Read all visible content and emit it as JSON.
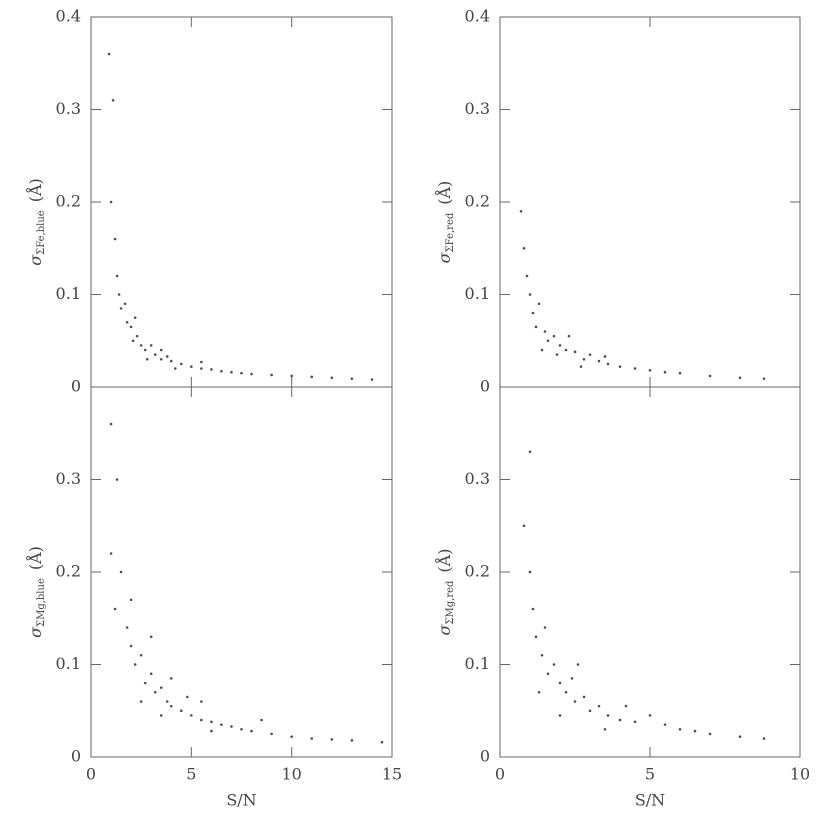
{
  "chart_data": [
    {
      "type": "scatter",
      "color": "#222222",
      "ylabel": {
        "symbol": "σ",
        "subscript": "ΣFe,blue",
        "unit": "(Å)"
      },
      "xlim": [
        0,
        15
      ],
      "ylim": [
        0,
        0.4
      ],
      "yticks": [
        0,
        0.1,
        0.2,
        0.3,
        0.4
      ],
      "x": [
        0.9,
        1.1,
        1.0,
        1.2,
        1.3,
        1.4,
        1.5,
        1.7,
        1.8,
        2.0,
        2.1,
        2.3,
        2.5,
        2.7,
        3.0,
        3.2,
        3.5,
        3.8,
        4.0,
        4.5,
        5.0,
        5.5,
        6.0,
        6.5,
        7.0,
        7.5,
        8.0,
        9.0,
        10.0,
        11.0,
        12.0,
        13.0,
        14.0,
        2.2,
        2.8,
        3.5,
        4.2,
        5.5
      ],
      "values": [
        0.36,
        0.31,
        0.2,
        0.16,
        0.12,
        0.1,
        0.085,
        0.09,
        0.07,
        0.065,
        0.05,
        0.055,
        0.045,
        0.04,
        0.045,
        0.035,
        0.03,
        0.033,
        0.028,
        0.025,
        0.022,
        0.02,
        0.019,
        0.017,
        0.016,
        0.015,
        0.014,
        0.013,
        0.012,
        0.011,
        0.01,
        0.009,
        0.008,
        0.075,
        0.03,
        0.04,
        0.02,
        0.027
      ]
    },
    {
      "type": "scatter",
      "color": "#222222",
      "ylabel": {
        "symbol": "σ",
        "subscript": "ΣFe,red",
        "unit": "(Å)"
      },
      "xlim": [
        0,
        10
      ],
      "ylim": [
        0,
        0.4
      ],
      "yticks": [
        0,
        0.1,
        0.2,
        0.3,
        0.4
      ],
      "x": [
        0.7,
        0.8,
        0.9,
        1.0,
        1.1,
        1.2,
        1.3,
        1.5,
        1.6,
        1.8,
        2.0,
        2.2,
        2.5,
        2.8,
        3.0,
        3.3,
        3.6,
        4.0,
        4.5,
        5.0,
        5.5,
        6.0,
        7.0,
        8.0,
        8.8,
        1.4,
        2.3,
        1.9,
        3.5,
        2.7
      ],
      "values": [
        0.19,
        0.15,
        0.12,
        0.1,
        0.08,
        0.065,
        0.09,
        0.06,
        0.05,
        0.055,
        0.045,
        0.04,
        0.038,
        0.03,
        0.035,
        0.028,
        0.025,
        0.022,
        0.02,
        0.018,
        0.016,
        0.015,
        0.012,
        0.01,
        0.009,
        0.04,
        0.055,
        0.035,
        0.033,
        0.022
      ]
    },
    {
      "type": "scatter",
      "color": "#222222",
      "ylabel": {
        "symbol": "σ",
        "subscript": "ΣMg,blue",
        "unit": "(Å)"
      },
      "xlabel": "S/N",
      "xlim": [
        0,
        15
      ],
      "xticks": [
        0,
        5,
        10,
        15
      ],
      "ylim": [
        0,
        0.4
      ],
      "yticks": [
        0,
        0.1,
        0.2,
        0.3
      ],
      "x": [
        1.0,
        1.3,
        1.0,
        1.5,
        1.2,
        1.8,
        2.0,
        2.2,
        2.5,
        2.7,
        3.0,
        3.2,
        3.5,
        3.8,
        4.0,
        4.5,
        4.8,
        5.0,
        5.5,
        6.0,
        6.5,
        7.0,
        7.5,
        8.0,
        9.0,
        10.0,
        11.0,
        12.0,
        13.0,
        14.5,
        2.0,
        2.5,
        3.0,
        4.0,
        5.5,
        3.5,
        6.0,
        8.5
      ],
      "values": [
        0.36,
        0.3,
        0.22,
        0.2,
        0.16,
        0.14,
        0.12,
        0.1,
        0.11,
        0.08,
        0.09,
        0.07,
        0.075,
        0.06,
        0.055,
        0.05,
        0.065,
        0.045,
        0.04,
        0.038,
        0.035,
        0.033,
        0.03,
        0.028,
        0.025,
        0.022,
        0.02,
        0.019,
        0.018,
        0.016,
        0.17,
        0.06,
        0.13,
        0.085,
        0.06,
        0.045,
        0.028,
        0.04
      ]
    },
    {
      "type": "scatter",
      "color": "#222222",
      "ylabel": {
        "symbol": "σ",
        "subscript": "ΣMg,red",
        "unit": "(Å)"
      },
      "xlabel": "S/N",
      "xlim": [
        0,
        10
      ],
      "xticks": [
        0,
        5,
        10
      ],
      "ylim": [
        0,
        0.4
      ],
      "yticks": [
        0,
        0.1,
        0.2,
        0.3
      ],
      "x": [
        1.0,
        0.8,
        1.0,
        1.1,
        1.2,
        1.4,
        1.5,
        1.6,
        1.8,
        2.0,
        2.2,
        2.4,
        2.5,
        2.8,
        3.0,
        3.3,
        3.6,
        4.0,
        4.5,
        5.0,
        5.5,
        6.0,
        6.5,
        7.0,
        8.0,
        8.8,
        1.3,
        2.0,
        2.6,
        3.5,
        4.2
      ],
      "values": [
        0.33,
        0.25,
        0.2,
        0.16,
        0.13,
        0.11,
        0.14,
        0.09,
        0.1,
        0.08,
        0.07,
        0.085,
        0.06,
        0.065,
        0.05,
        0.055,
        0.045,
        0.04,
        0.038,
        0.045,
        0.035,
        0.03,
        0.028,
        0.025,
        0.022,
        0.02,
        0.07,
        0.045,
        0.1,
        0.03,
        0.055
      ]
    }
  ]
}
